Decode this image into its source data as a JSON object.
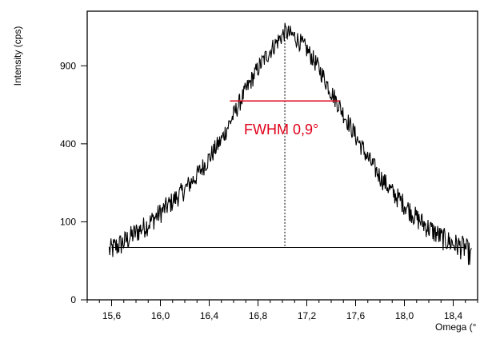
{
  "colors": {
    "curve": "#000000",
    "fwhm_line": "#e0001a",
    "fwhm_text": "#e0001a",
    "axis": "#000000",
    "background": "#ffffff"
  },
  "chart_data": {
    "type": "line",
    "xlabel": "Omega (°",
    "ylabel": "Intensity (cps)",
    "x_tick_labels": [
      "15,6",
      "16,0",
      "16,4",
      "16,8",
      "17,2",
      "17,6",
      "18,0",
      "18,4"
    ],
    "x_ticks": [
      15.6,
      16.0,
      16.4,
      16.8,
      17.2,
      17.6,
      18.0,
      18.4
    ],
    "y_tick_labels": [
      "0",
      "100",
      "400",
      "900"
    ],
    "y_ticks": [
      0,
      100,
      400,
      900
    ],
    "y_scale": "sqrt",
    "xlim": [
      15.4,
      18.6
    ],
    "ylim": [
      0,
      1369
    ],
    "grid": false,
    "peak": {
      "center": 17.02,
      "max_intensity": 1180,
      "baseline": 45,
      "fwhm": 0.9
    },
    "baseline_line": {
      "x_start": 15.6,
      "x_end": 18.5,
      "y": 45
    },
    "center_line": {
      "x": 17.02,
      "style": "dotted"
    },
    "fwhm_annotation": {
      "label": "FWHM 0,9°",
      "x_start": 16.57,
      "x_end": 17.47,
      "y": 650
    },
    "series": [
      {
        "points_x": [
          15.58,
          15.7,
          15.8,
          15.9,
          16.0,
          16.1,
          16.2,
          16.3,
          16.4,
          16.5,
          16.6,
          16.7,
          16.8,
          16.9,
          17.0,
          17.02,
          17.1,
          17.2,
          17.3,
          17.4,
          17.5,
          17.6,
          17.7,
          17.8,
          17.9,
          18.0,
          18.1,
          18.2,
          18.3,
          18.4,
          18.5,
          18.55
        ],
        "points_y": [
          40,
          55,
          75,
          95,
          125,
          160,
          200,
          255,
          330,
          420,
          560,
          720,
          880,
          1020,
          1150,
          1180,
          1140,
          1030,
          880,
          710,
          570,
          440,
          330,
          250,
          190,
          150,
          110,
          85,
          65,
          52,
          45,
          30
        ]
      }
    ]
  }
}
